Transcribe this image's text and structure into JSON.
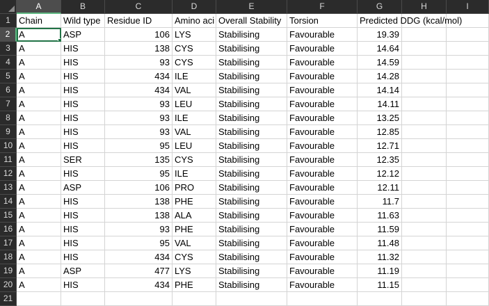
{
  "columns": [
    "A",
    "B",
    "C",
    "D",
    "E",
    "F",
    "G",
    "H",
    "I"
  ],
  "row_numbers": [
    "1",
    "2",
    "3",
    "4",
    "5",
    "6",
    "7",
    "8",
    "9",
    "10",
    "11",
    "12",
    "13",
    "14",
    "15",
    "16",
    "17",
    "18",
    "19",
    "20",
    "21"
  ],
  "headers": {
    "chain": "Chain",
    "wild_type": "Wild type",
    "residue_id": "Residue ID",
    "amino_acid": "Amino aci",
    "overall_stability": "Overall Stability",
    "torsion": "Torsion",
    "predicted_ddg": "Predicted DDG (kcal/mol)"
  },
  "rows": [
    {
      "chain": "A",
      "wild_type": "ASP",
      "residue_id": "106",
      "amino_acid": "LYS",
      "stability": "Stabilising",
      "torsion": "Favourable",
      "ddg": "19.39"
    },
    {
      "chain": "A",
      "wild_type": "HIS",
      "residue_id": "138",
      "amino_acid": "CYS",
      "stability": "Stabilising",
      "torsion": "Favourable",
      "ddg": "14.64"
    },
    {
      "chain": "A",
      "wild_type": "HIS",
      "residue_id": "93",
      "amino_acid": "CYS",
      "stability": "Stabilising",
      "torsion": "Favourable",
      "ddg": "14.59"
    },
    {
      "chain": "A",
      "wild_type": "HIS",
      "residue_id": "434",
      "amino_acid": "ILE",
      "stability": "Stabilising",
      "torsion": "Favourable",
      "ddg": "14.28"
    },
    {
      "chain": "A",
      "wild_type": "HIS",
      "residue_id": "434",
      "amino_acid": "VAL",
      "stability": "Stabilising",
      "torsion": "Favourable",
      "ddg": "14.14"
    },
    {
      "chain": "A",
      "wild_type": "HIS",
      "residue_id": "93",
      "amino_acid": "LEU",
      "stability": "Stabilising",
      "torsion": "Favourable",
      "ddg": "14.11"
    },
    {
      "chain": "A",
      "wild_type": "HIS",
      "residue_id": "93",
      "amino_acid": "ILE",
      "stability": "Stabilising",
      "torsion": "Favourable",
      "ddg": "13.25"
    },
    {
      "chain": "A",
      "wild_type": "HIS",
      "residue_id": "93",
      "amino_acid": "VAL",
      "stability": "Stabilising",
      "torsion": "Favourable",
      "ddg": "12.85"
    },
    {
      "chain": "A",
      "wild_type": "HIS",
      "residue_id": "95",
      "amino_acid": "LEU",
      "stability": "Stabilising",
      "torsion": "Favourable",
      "ddg": "12.71"
    },
    {
      "chain": "A",
      "wild_type": "SER",
      "residue_id": "135",
      "amino_acid": "CYS",
      "stability": "Stabilising",
      "torsion": "Favourable",
      "ddg": "12.35"
    },
    {
      "chain": "A",
      "wild_type": "HIS",
      "residue_id": "95",
      "amino_acid": "ILE",
      "stability": "Stabilising",
      "torsion": "Favourable",
      "ddg": "12.12"
    },
    {
      "chain": "A",
      "wild_type": "ASP",
      "residue_id": "106",
      "amino_acid": "PRO",
      "stability": "Stabilising",
      "torsion": "Favourable",
      "ddg": "12.11"
    },
    {
      "chain": "A",
      "wild_type": "HIS",
      "residue_id": "138",
      "amino_acid": "PHE",
      "stability": "Stabilising",
      "torsion": "Favourable",
      "ddg": "11.7"
    },
    {
      "chain": "A",
      "wild_type": "HIS",
      "residue_id": "138",
      "amino_acid": "ALA",
      "stability": "Stabilising",
      "torsion": "Favourable",
      "ddg": "11.63"
    },
    {
      "chain": "A",
      "wild_type": "HIS",
      "residue_id": "93",
      "amino_acid": "PHE",
      "stability": "Stabilising",
      "torsion": "Favourable",
      "ddg": "11.59"
    },
    {
      "chain": "A",
      "wild_type": "HIS",
      "residue_id": "95",
      "amino_acid": "VAL",
      "stability": "Stabilising",
      "torsion": "Favourable",
      "ddg": "11.48"
    },
    {
      "chain": "A",
      "wild_type": "HIS",
      "residue_id": "434",
      "amino_acid": "CYS",
      "stability": "Stabilising",
      "torsion": "Favourable",
      "ddg": "11.32"
    },
    {
      "chain": "A",
      "wild_type": "ASP",
      "residue_id": "477",
      "amino_acid": "LYS",
      "stability": "Stabilising",
      "torsion": "Favourable",
      "ddg": "11.19"
    },
    {
      "chain": "A",
      "wild_type": "HIS",
      "residue_id": "434",
      "amino_acid": "PHE",
      "stability": "Stabilising",
      "torsion": "Favourable",
      "ddg": "11.15"
    }
  ]
}
